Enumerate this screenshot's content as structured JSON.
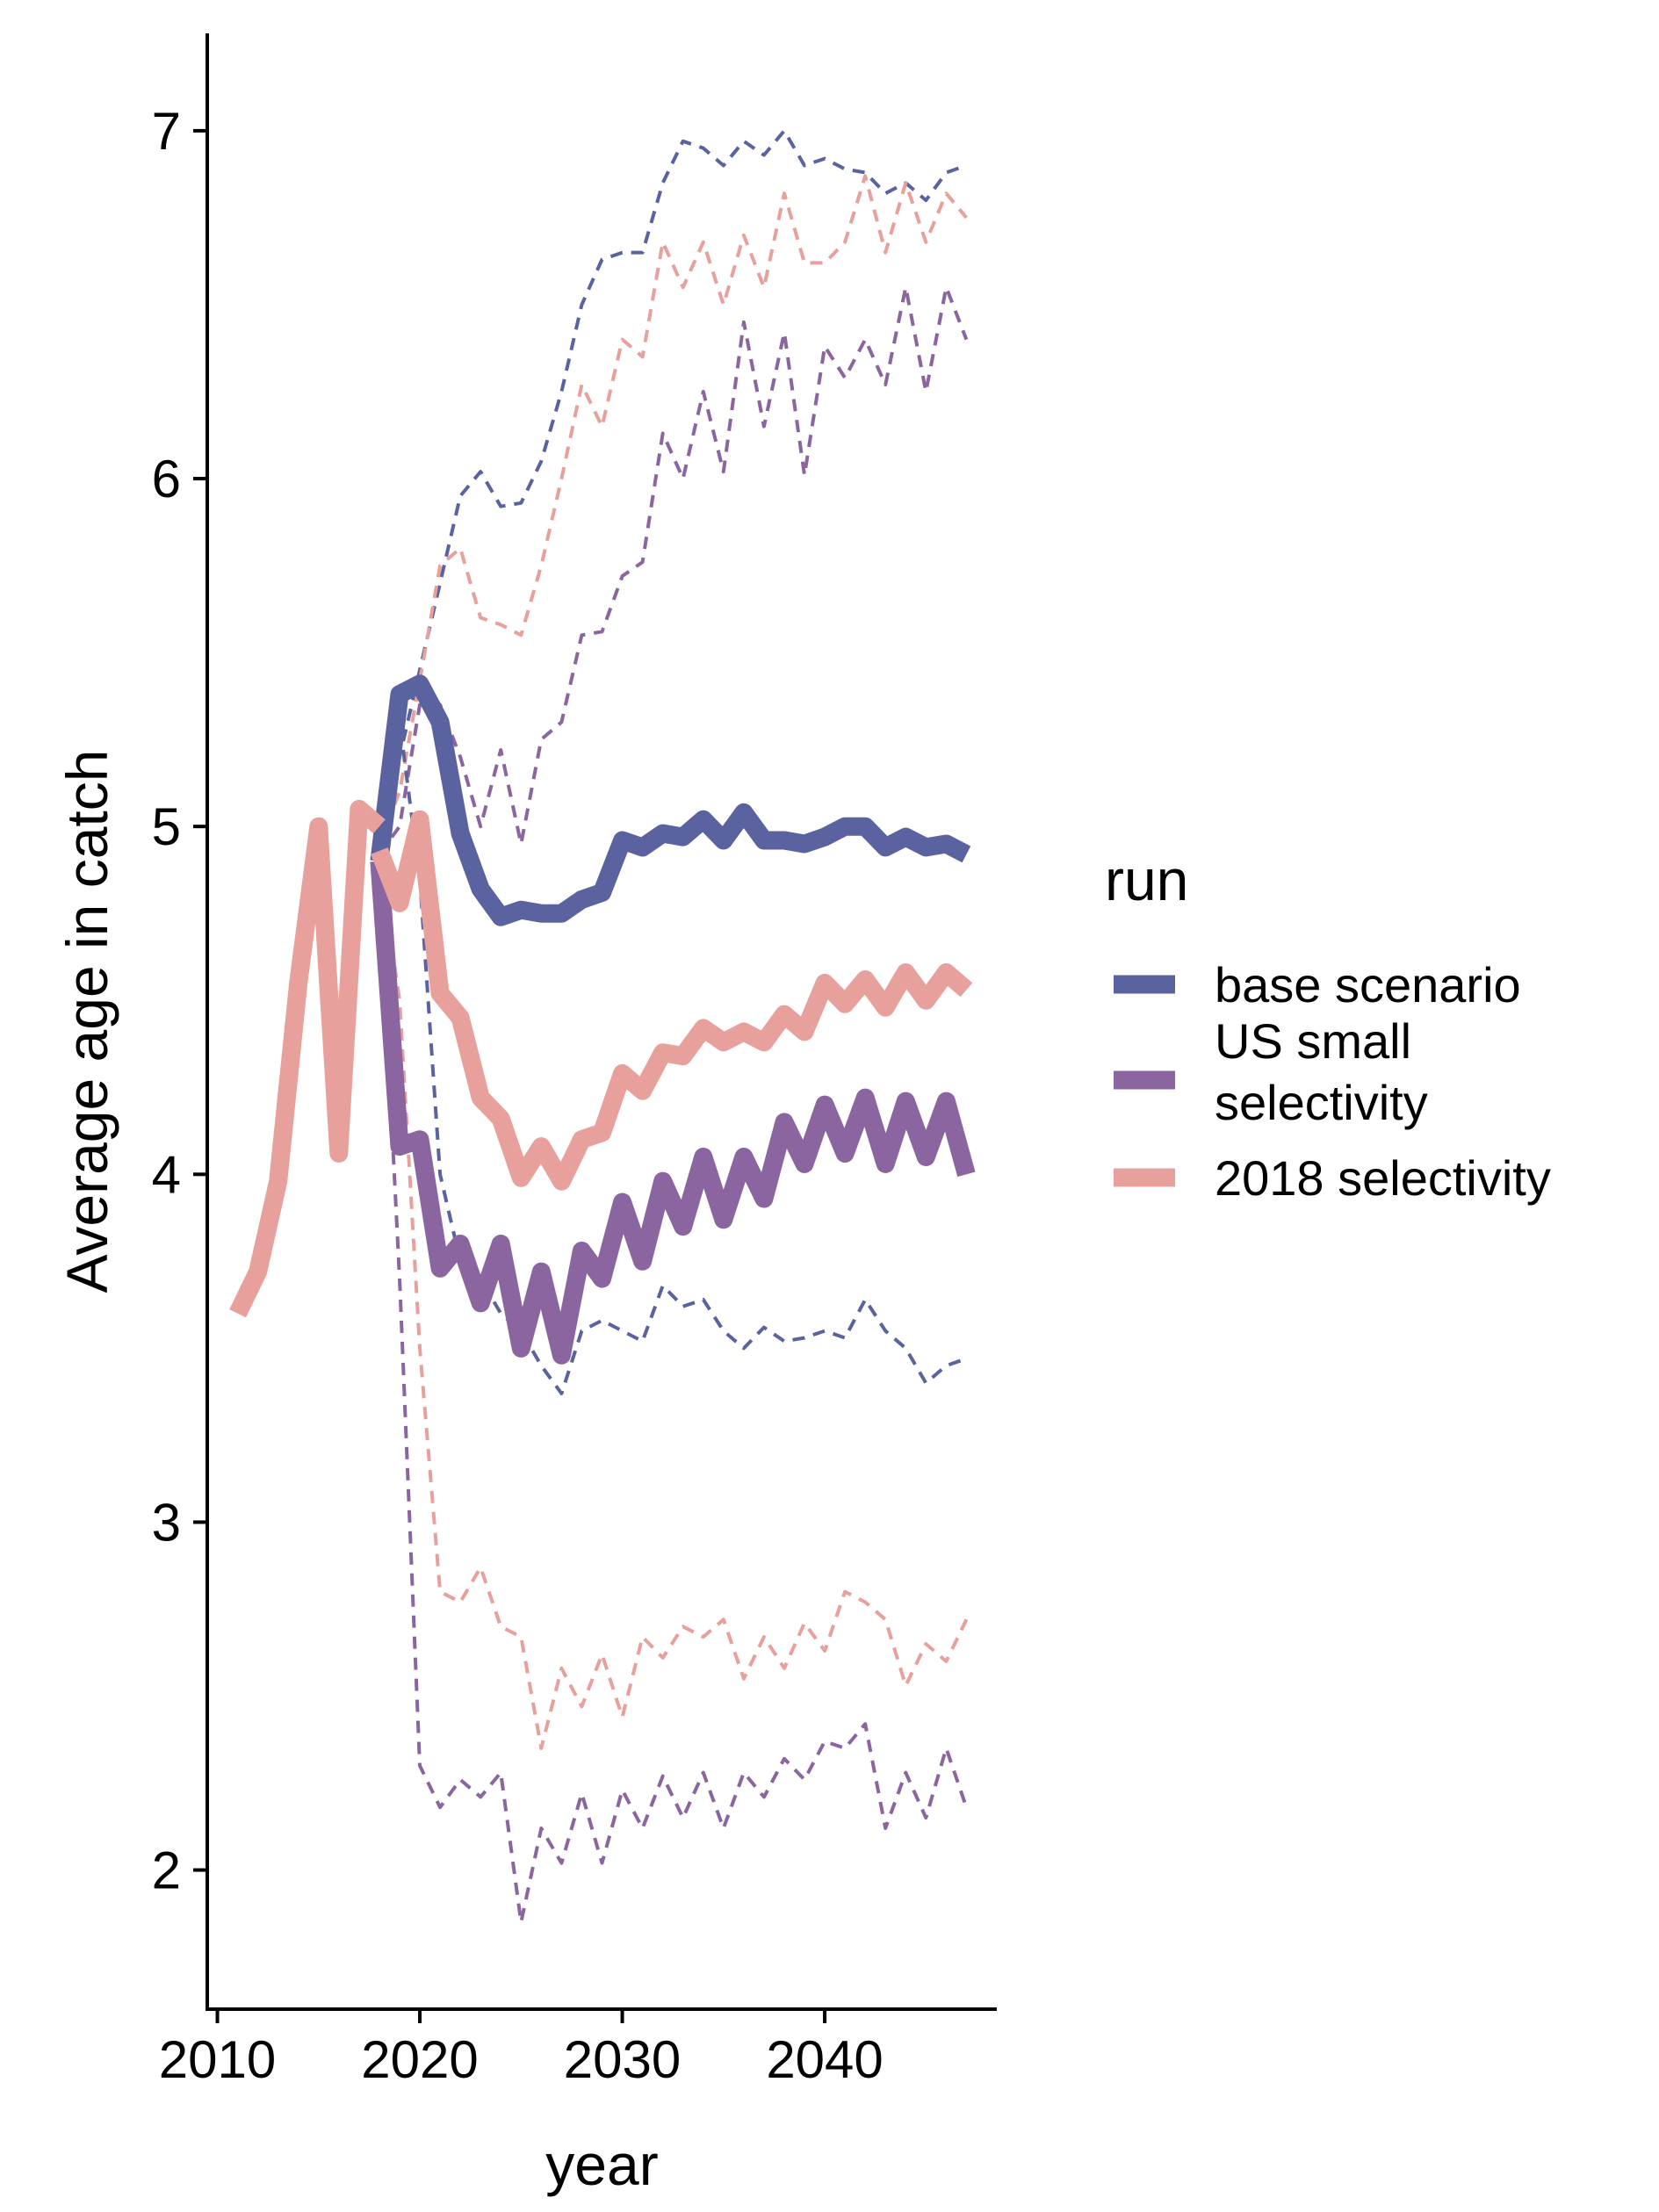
{
  "chart_data": {
    "type": "line",
    "title": "",
    "xlabel": "year",
    "ylabel": "Average age in catch",
    "xlim": [
      2009.5,
      2048.5
    ],
    "ylim": [
      1.6,
      7.28
    ],
    "x_ticks": [
      2010,
      2020,
      2030,
      2040
    ],
    "y_ticks": [
      2,
      3,
      4,
      5,
      6,
      7
    ],
    "grid": false,
    "legend": {
      "title": "run",
      "position": "right",
      "entries": [
        {
          "key": "base",
          "lines": [
            "base scenario"
          ]
        },
        {
          "key": "us_small",
          "lines": [
            "US small",
            "selectivity"
          ]
        },
        {
          "key": "sel2018",
          "lines": [
            "2018 selectivity"
          ]
        }
      ]
    },
    "colors": {
      "base": "#5a63a0",
      "us_small": "#8a65a0",
      "sel2018": "#e8a09c"
    },
    "series": [
      {
        "name": "2018 selectivity",
        "key": "sel2018",
        "role": "historical",
        "x": [
          2011,
          2012,
          2013,
          2014,
          2015,
          2016,
          2017,
          2018
        ],
        "y": [
          3.6,
          3.72,
          3.98,
          4.55,
          5.0,
          4.06,
          5.05,
          5.0
        ]
      },
      {
        "name": "base scenario",
        "key": "base",
        "role": "median",
        "x": [
          2018,
          2019,
          2020,
          2021,
          2022,
          2023,
          2024,
          2025,
          2026,
          2027,
          2028,
          2029,
          2030,
          2031,
          2032,
          2033,
          2034,
          2035,
          2036,
          2037,
          2038,
          2039,
          2040,
          2041,
          2042,
          2043,
          2044,
          2045,
          2046,
          2047
        ],
        "y": [
          4.9,
          5.38,
          5.41,
          5.3,
          4.98,
          4.82,
          4.74,
          4.76,
          4.75,
          4.75,
          4.79,
          4.81,
          4.96,
          4.94,
          4.98,
          4.97,
          5.02,
          4.96,
          5.04,
          4.96,
          4.96,
          4.95,
          4.97,
          5.0,
          5.0,
          4.94,
          4.97,
          4.94,
          4.95,
          4.92
        ]
      },
      {
        "name": "US small selectivity",
        "key": "us_small",
        "role": "median",
        "x": [
          2018,
          2019,
          2020,
          2021,
          2022,
          2023,
          2024,
          2025,
          2026,
          2027,
          2028,
          2029,
          2030,
          2031,
          2032,
          2033,
          2034,
          2035,
          2036,
          2037,
          2038,
          2039,
          2040,
          2041,
          2042,
          2043,
          2044,
          2045,
          2046,
          2047
        ],
        "y": [
          4.9,
          4.08,
          4.1,
          3.73,
          3.8,
          3.63,
          3.8,
          3.5,
          3.72,
          3.48,
          3.78,
          3.7,
          3.92,
          3.75,
          3.98,
          3.85,
          4.05,
          3.87,
          4.05,
          3.93,
          4.15,
          4.03,
          4.2,
          4.06,
          4.22,
          4.03,
          4.21,
          4.05,
          4.21,
          4.0
        ]
      },
      {
        "name": "2018 selectivity",
        "key": "sel2018",
        "role": "median",
        "x": [
          2018,
          2019,
          2020,
          2021,
          2022,
          2023,
          2024,
          2025,
          2026,
          2027,
          2028,
          2029,
          2030,
          2031,
          2032,
          2033,
          2034,
          2035,
          2036,
          2037,
          2038,
          2039,
          2040,
          2041,
          2042,
          2043,
          2044,
          2045,
          2046,
          2047
        ],
        "y": [
          4.93,
          4.78,
          5.02,
          4.52,
          4.45,
          4.22,
          4.16,
          3.99,
          4.08,
          3.98,
          4.1,
          4.12,
          4.29,
          4.24,
          4.35,
          4.34,
          4.42,
          4.38,
          4.41,
          4.38,
          4.46,
          4.41,
          4.55,
          4.49,
          4.56,
          4.48,
          4.58,
          4.5,
          4.58,
          4.53
        ]
      },
      {
        "name": "base scenario",
        "key": "base",
        "role": "upper",
        "x": [
          2018,
          2019,
          2020,
          2021,
          2022,
          2023,
          2024,
          2025,
          2026,
          2027,
          2028,
          2029,
          2030,
          2031,
          2032,
          2033,
          2034,
          2035,
          2036,
          2037,
          2038,
          2039,
          2040,
          2041,
          2042,
          2043,
          2044,
          2045,
          2046,
          2047
        ],
        "y": [
          4.95,
          5.2,
          5.45,
          5.7,
          5.95,
          6.02,
          5.92,
          5.93,
          6.05,
          6.25,
          6.5,
          6.63,
          6.65,
          6.65,
          6.85,
          6.97,
          6.95,
          6.9,
          6.97,
          6.93,
          7.0,
          6.9,
          6.92,
          6.89,
          6.88,
          6.82,
          6.85,
          6.8,
          6.88,
          6.9
        ]
      },
      {
        "name": "US small selectivity",
        "key": "us_small",
        "role": "upper",
        "x": [
          2018,
          2019,
          2020,
          2021,
          2022,
          2023,
          2024,
          2025,
          2026,
          2027,
          2028,
          2029,
          2030,
          2031,
          2032,
          2033,
          2034,
          2035,
          2036,
          2037,
          2038,
          2039,
          2040,
          2041,
          2042,
          2043,
          2044,
          2045,
          2046,
          2047
        ],
        "y": [
          4.92,
          5.0,
          5.35,
          5.35,
          5.2,
          5.0,
          5.22,
          4.95,
          5.25,
          5.3,
          5.55,
          5.56,
          5.72,
          5.76,
          6.13,
          6.0,
          6.25,
          6.02,
          6.45,
          6.15,
          6.42,
          6.01,
          6.38,
          6.29,
          6.4,
          6.27,
          6.55,
          6.25,
          6.55,
          6.4
        ]
      },
      {
        "name": "2018 selectivity",
        "key": "sel2018",
        "role": "upper",
        "x": [
          2018,
          2019,
          2020,
          2021,
          2022,
          2023,
          2024,
          2025,
          2026,
          2027,
          2028,
          2029,
          2030,
          2031,
          2032,
          2033,
          2034,
          2035,
          2036,
          2037,
          2038,
          2039,
          2040,
          2041,
          2042,
          2043,
          2044,
          2045,
          2046,
          2047
        ],
        "y": [
          4.95,
          5.1,
          5.42,
          5.75,
          5.8,
          5.6,
          5.58,
          5.55,
          5.75,
          6.0,
          6.27,
          6.15,
          6.4,
          6.35,
          6.68,
          6.55,
          6.68,
          6.5,
          6.7,
          6.55,
          6.82,
          6.62,
          6.62,
          6.68,
          6.87,
          6.65,
          6.85,
          6.68,
          6.82,
          6.75
        ]
      },
      {
        "name": "base scenario",
        "key": "base",
        "role": "lower",
        "x": [
          2018,
          2019,
          2020,
          2021,
          2022,
          2023,
          2024,
          2025,
          2026,
          2027,
          2028,
          2029,
          2030,
          2031,
          2032,
          2033,
          2034,
          2035,
          2036,
          2037,
          2038,
          2039,
          2040,
          2041,
          2042,
          2043,
          2044,
          2045,
          2046,
          2047
        ],
        "y": [
          4.9,
          5.3,
          4.85,
          4.0,
          3.75,
          3.7,
          3.6,
          3.55,
          3.45,
          3.37,
          3.55,
          3.58,
          3.55,
          3.52,
          3.68,
          3.62,
          3.64,
          3.55,
          3.5,
          3.56,
          3.52,
          3.53,
          3.55,
          3.53,
          3.64,
          3.55,
          3.5,
          3.4,
          3.45,
          3.47
        ]
      },
      {
        "name": "US small selectivity",
        "key": "us_small",
        "role": "lower",
        "x": [
          2018,
          2019,
          2020,
          2021,
          2022,
          2023,
          2024,
          2025,
          2026,
          2027,
          2028,
          2029,
          2030,
          2031,
          2032,
          2033,
          2034,
          2035,
          2036,
          2037,
          2038,
          2039,
          2040,
          2041,
          2042,
          2043,
          2044,
          2045,
          2046,
          2047
        ],
        "y": [
          4.85,
          3.7,
          2.3,
          2.18,
          2.26,
          2.21,
          2.28,
          1.85,
          2.12,
          2.02,
          2.22,
          2.02,
          2.23,
          2.12,
          2.27,
          2.15,
          2.28,
          2.12,
          2.28,
          2.21,
          2.32,
          2.26,
          2.37,
          2.35,
          2.42,
          2.12,
          2.28,
          2.15,
          2.35,
          2.18
        ]
      },
      {
        "name": "2018 selectivity",
        "key": "sel2018",
        "role": "lower",
        "x": [
          2018,
          2019,
          2020,
          2021,
          2022,
          2023,
          2024,
          2025,
          2026,
          2027,
          2028,
          2029,
          2030,
          2031,
          2032,
          2033,
          2034,
          2035,
          2036,
          2037,
          2038,
          2039,
          2040,
          2041,
          2042,
          2043,
          2044,
          2045,
          2046,
          2047
        ],
        "y": [
          4.9,
          4.5,
          3.5,
          2.8,
          2.77,
          2.87,
          2.7,
          2.67,
          2.35,
          2.58,
          2.47,
          2.62,
          2.44,
          2.67,
          2.61,
          2.7,
          2.67,
          2.72,
          2.55,
          2.67,
          2.58,
          2.71,
          2.63,
          2.8,
          2.77,
          2.72,
          2.53,
          2.65,
          2.6,
          2.72
        ]
      }
    ]
  }
}
